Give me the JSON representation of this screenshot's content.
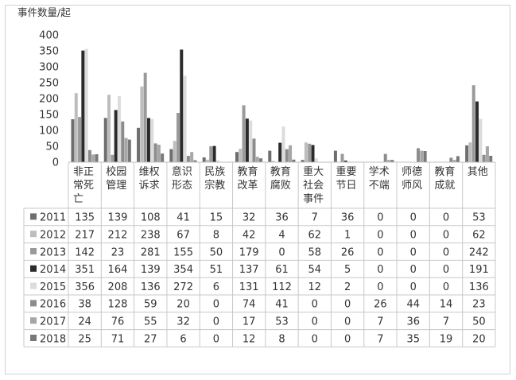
{
  "chart_data": {
    "type": "bar",
    "ylabel": "事件数量/起",
    "ylim": [
      0,
      400
    ],
    "yticks": [
      0,
      50,
      100,
      150,
      200,
      250,
      300,
      350,
      400
    ],
    "grid": false,
    "legend": "table-left",
    "categories": [
      "非正常死亡",
      "校园管理",
      "维权诉求",
      "意识形态",
      "民族宗教",
      "教育改革",
      "教育腐败",
      "重大社会事件",
      "重要节日",
      "学术不端",
      "师德师风",
      "教育成就",
      "其他"
    ],
    "category_lines": [
      [
        "非正",
        "常死",
        "亡"
      ],
      [
        "校园",
        "管理"
      ],
      [
        "维权",
        "诉求"
      ],
      [
        "意识",
        "形态"
      ],
      [
        "民族",
        "宗教"
      ],
      [
        "教育",
        "改革"
      ],
      [
        "教育",
        "腐败"
      ],
      [
        "重大",
        "社会",
        "事件"
      ],
      [
        "重要",
        "节日"
      ],
      [
        "学术",
        "不端"
      ],
      [
        "师德",
        "师风"
      ],
      [
        "教育",
        "成就"
      ],
      [
        "其他"
      ]
    ],
    "series": [
      {
        "name": "2011",
        "color": "#6e6e6e",
        "values": [
          135,
          139,
          108,
          41,
          15,
          32,
          36,
          7,
          36,
          0,
          0,
          0,
          53
        ]
      },
      {
        "name": "2012",
        "color": "#bdbdbd",
        "values": [
          217,
          212,
          238,
          67,
          8,
          42,
          4,
          62,
          1,
          0,
          0,
          0,
          62
        ]
      },
      {
        "name": "2013",
        "color": "#9a9a9a",
        "values": [
          142,
          23,
          281,
          155,
          50,
          179,
          0,
          58,
          26,
          0,
          0,
          0,
          242
        ]
      },
      {
        "name": "2014",
        "color": "#2b2b2b",
        "values": [
          351,
          164,
          139,
          354,
          51,
          137,
          61,
          54,
          5,
          0,
          0,
          0,
          191
        ]
      },
      {
        "name": "2015",
        "color": "#dcdcdc",
        "values": [
          356,
          208,
          136,
          272,
          6,
          131,
          112,
          12,
          2,
          0,
          0,
          0,
          136
        ]
      },
      {
        "name": "2016",
        "color": "#8c8c8c",
        "values": [
          38,
          128,
          59,
          20,
          0,
          74,
          41,
          0,
          0,
          26,
          44,
          14,
          23
        ]
      },
      {
        "name": "2017",
        "color": "#a6a6a6",
        "values": [
          24,
          76,
          55,
          32,
          0,
          17,
          53,
          0,
          0,
          7,
          36,
          7,
          50
        ]
      },
      {
        "name": "2018",
        "color": "#787878",
        "values": [
          25,
          71,
          27,
          6,
          0,
          12,
          8,
          0,
          0,
          7,
          35,
          19,
          20
        ]
      }
    ]
  }
}
